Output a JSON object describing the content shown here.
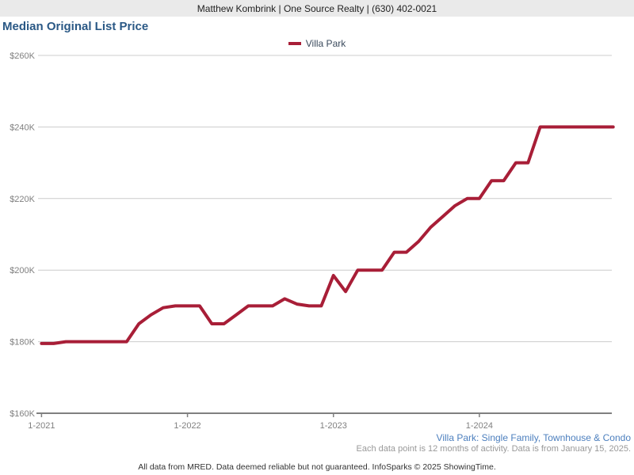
{
  "header": {
    "agent_info": "Matthew Kombrink | One Source Realty | (630) 402-0021"
  },
  "page": {
    "title": "Median Original List Price"
  },
  "legend": {
    "label": "Villa Park",
    "line_color": "#A81E37"
  },
  "chart_data": {
    "type": "line",
    "title": "Median Original List Price",
    "unit": "USD thousands",
    "grid": "horizontal",
    "legend_position": "top-center",
    "ylim": [
      160,
      260
    ],
    "y_tick_values": [
      160,
      180,
      200,
      220,
      240,
      260
    ],
    "y_tick_labels": [
      "$160K",
      "$180K",
      "$200K",
      "$220K",
      "$240K",
      "$260K"
    ],
    "x_tick_indices": [
      0,
      12,
      24,
      36
    ],
    "x_tick_labels": [
      "1-2021",
      "1-2022",
      "1-2023",
      "1-2024"
    ],
    "x": [
      "1-2021",
      "2-2021",
      "3-2021",
      "4-2021",
      "5-2021",
      "6-2021",
      "7-2021",
      "8-2021",
      "9-2021",
      "10-2021",
      "11-2021",
      "12-2021",
      "1-2022",
      "2-2022",
      "3-2022",
      "4-2022",
      "5-2022",
      "6-2022",
      "7-2022",
      "8-2022",
      "9-2022",
      "10-2022",
      "11-2022",
      "12-2022",
      "1-2023",
      "2-2023",
      "3-2023",
      "4-2023",
      "5-2023",
      "6-2023",
      "7-2023",
      "8-2023",
      "9-2023",
      "10-2023",
      "11-2023",
      "12-2023",
      "1-2024",
      "2-2024",
      "3-2024",
      "4-2024",
      "5-2024",
      "6-2024",
      "7-2024",
      "8-2024",
      "9-2024",
      "10-2024",
      "11-2024",
      "12-2024"
    ],
    "series": [
      {
        "name": "Villa Park",
        "color": "#A81E37",
        "values": [
          179.5,
          179.5,
          180,
          180,
          180,
          180,
          180,
          180,
          185,
          187.5,
          189.5,
          190,
          190,
          190,
          185,
          185,
          187.5,
          190,
          190,
          190,
          192,
          190.5,
          190,
          190,
          198.5,
          194,
          200,
          200,
          200,
          205,
          205,
          208,
          212,
          215,
          218,
          220,
          220,
          225,
          225,
          230,
          230,
          240,
          240,
          240,
          240,
          240,
          240,
          240
        ]
      }
    ]
  },
  "footer": {
    "subtitle": "Villa Park: Single Family, Townhouse & Condo",
    "note": "Each data point is 12 months of activity. Data is from January 15, 2025.",
    "disclaimer": "All data from MRED. Data deemed reliable but not guaranteed. InfoSparks © 2025 ShowingTime."
  }
}
